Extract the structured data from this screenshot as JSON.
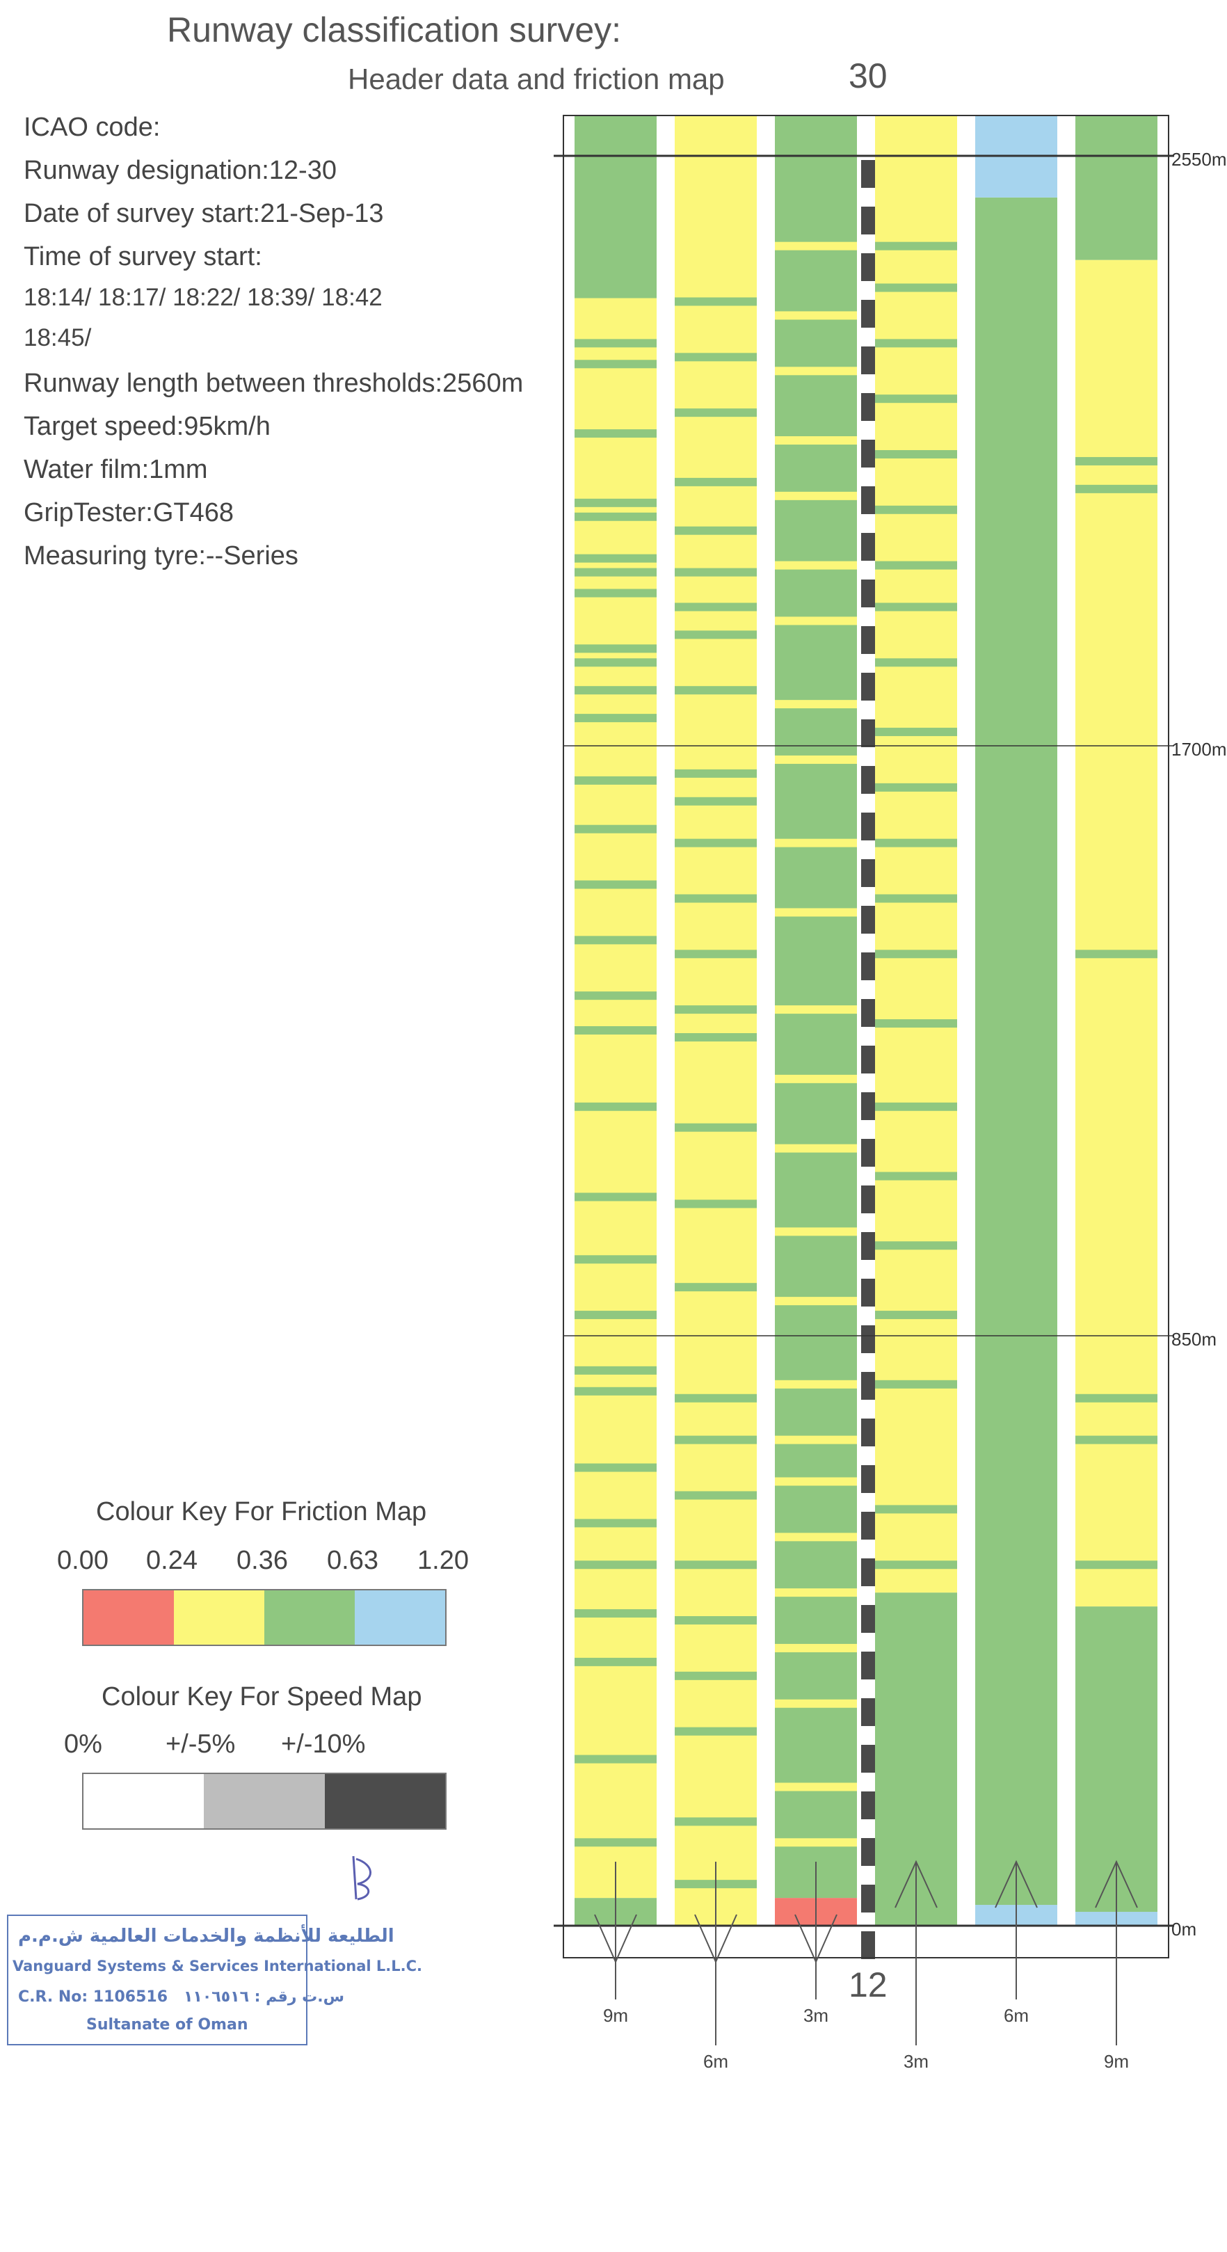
{
  "header": {
    "title": "Runway classification survey:",
    "subtitle": "Header data and friction map",
    "rwy_top": "30",
    "rwy_bottom": "12",
    "lines": [
      "ICAO code:",
      "Runway designation:12-30",
      "Date of survey start:21-Sep-13",
      "Time of survey start:",
      " 18:14/ 18:17/ 18:22/ 18:39/ 18:42",
      " 18:45/",
      "Runway length between thresholds:2560m",
      "Target speed:95km/h",
      "Water film:1mm",
      "GripTester:GT468",
      "Measuring tyre:--Series"
    ]
  },
  "friction_key": {
    "title": "Colour Key For Friction Map",
    "values": [
      "0.00",
      "0.24",
      "0.36",
      "0.63",
      "1.20"
    ],
    "colors": [
      "#f47a70",
      "#fbf77a",
      "#8fc780",
      "#a6d4ee"
    ]
  },
  "speed_key": {
    "title": "Colour Key For Speed Map",
    "values": [
      "0%",
      "+/-5%",
      "+/-10%"
    ],
    "colors": [
      "#ffffff",
      "#bdbdbd",
      "#4c4c4c"
    ]
  },
  "chainage_labels": [
    "2550m",
    "1700m",
    "850m",
    "0m"
  ],
  "lane_offsets": [
    "9m",
    "6m",
    "3m",
    "3m",
    "6m",
    "9m"
  ],
  "stamp": {
    "arabic": "الطليعة للأنظمة والخدمات العالمية ش.م.م",
    "english": "Vanguard Systems & Services International L.L.C.",
    "cr": "C.R. No: 1106516",
    "cr_arabic": "س.ت رقم : ١١٠٦٥١٦",
    "country": "Sultanate of Oman"
  },
  "colors": {
    "red": "#f47a70",
    "yellow": "#fbf77a",
    "green": "#8fc780",
    "blue": "#a6d4ee"
  },
  "chart_data": {
    "type": "heatmap",
    "description_units": "chainage in metres from threshold 12 (0m) to threshold 30 (2560m)",
    "ylim": [
      0,
      2560
    ],
    "y_ticks": [
      0,
      850,
      1700,
      2550
    ],
    "lanes": [
      {
        "offset": "9m",
        "side": "left",
        "segments": [
          {
            "from": 0,
            "to": 40,
            "value": "green"
          },
          {
            "from": 40,
            "to": 2345,
            "value": "yellow",
            "green_bands": [
              120,
              240,
              380,
              450,
              520,
              580,
              660,
              770,
              800,
              880,
              960,
              1050,
              1180,
              1290,
              1340,
              1420,
              1500,
              1580,
              1650,
              1740,
              1780,
              1820,
              1840,
              1920,
              1950,
              1970,
              2030,
              2050,
              2150,
              2250,
              2280
            ]
          },
          {
            "from": 2345,
            "to": 2620,
            "value": "green"
          }
        ]
      },
      {
        "offset": "6m",
        "side": "left",
        "segments": [
          {
            "from": 0,
            "to": 2620,
            "value": "yellow",
            "green_bands": [
              60,
              150,
              280,
              360,
              440,
              520,
              620,
              700,
              760,
              920,
              1040,
              1150,
              1280,
              1320,
              1400,
              1480,
              1560,
              1620,
              1660,
              1780,
              1860,
              1900,
              1950,
              2010,
              2080,
              2180,
              2260,
              2340
            ]
          }
        ]
      },
      {
        "offset": "3m",
        "side": "left",
        "segments": [
          {
            "from": 0,
            "to": 40,
            "value": "red"
          },
          {
            "from": 40,
            "to": 2620,
            "value": "green",
            "yellow_bands": [
              120,
              200,
              320,
              400,
              480,
              560,
              640,
              700,
              780,
              900,
              1000,
              1120,
              1220,
              1320,
              1460,
              1560,
              1680,
              1760,
              1880,
              1960,
              2060,
              2140,
              2240,
              2320,
              2420
            ]
          }
        ]
      },
      {
        "offset": "3m",
        "side": "right",
        "segments": [
          {
            "from": 0,
            "to": 480,
            "value": "green"
          },
          {
            "from": 480,
            "to": 2620,
            "value": "yellow",
            "green_bands": [
              520,
              600,
              780,
              880,
              980,
              1080,
              1180,
              1300,
              1400,
              1480,
              1560,
              1640,
              1720,
              1820,
              1900,
              1960,
              2040,
              2120,
              2200,
              2280,
              2360,
              2420
            ]
          }
        ]
      },
      {
        "offset": "6m",
        "side": "right",
        "segments": [
          {
            "from": 0,
            "to": 30,
            "value": "blue"
          },
          {
            "from": 30,
            "to": 2490,
            "value": "green"
          },
          {
            "from": 2490,
            "to": 2620,
            "value": "blue"
          }
        ]
      },
      {
        "offset": "9m",
        "side": "right",
        "segments": [
          {
            "from": 0,
            "to": 20,
            "value": "blue"
          },
          {
            "from": 20,
            "to": 460,
            "value": "green"
          },
          {
            "from": 460,
            "to": 2400,
            "value": "yellow",
            "green_bands": [
              520,
              700,
              760,
              1400,
              2070,
              2110
            ]
          },
          {
            "from": 2400,
            "to": 2620,
            "value": "green"
          }
        ]
      }
    ]
  }
}
